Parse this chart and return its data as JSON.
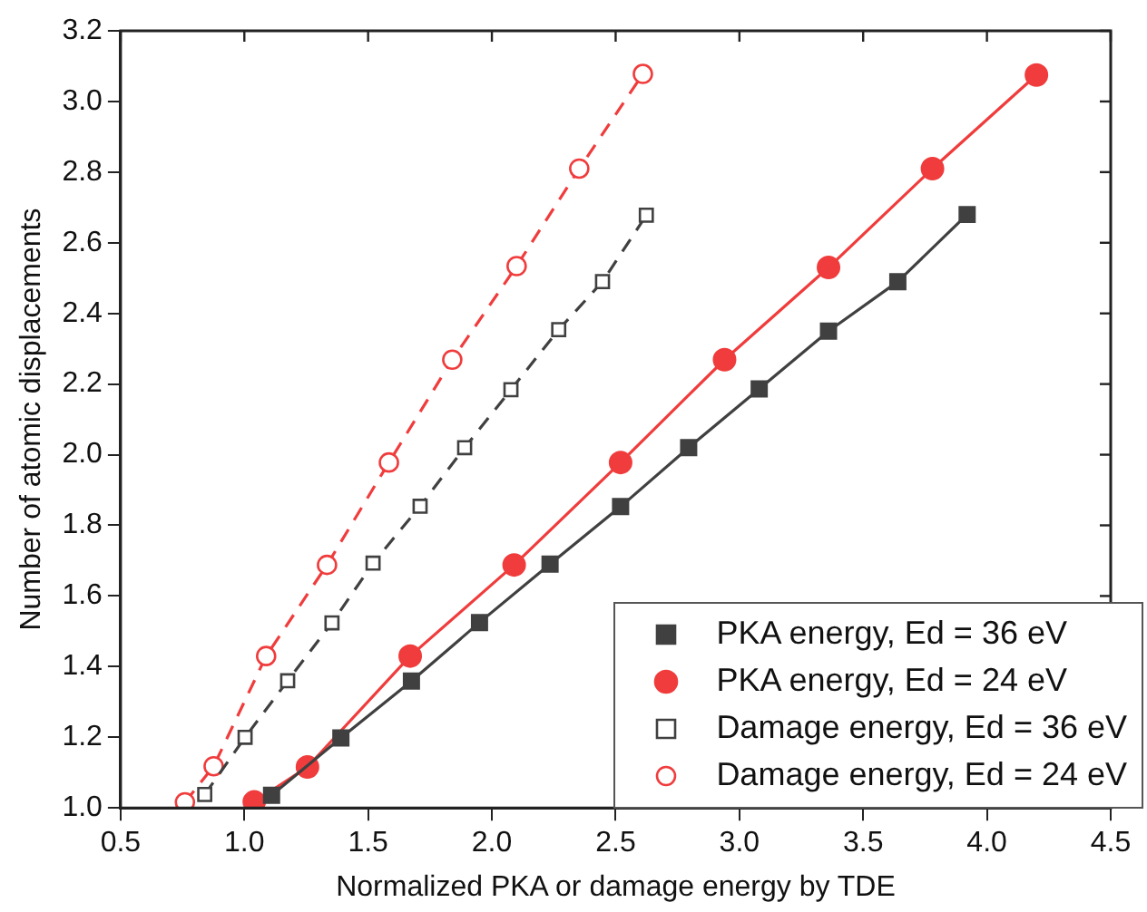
{
  "chart_data": {
    "type": "line",
    "xlabel": "Normalized PKA or damage energy by TDE",
    "ylabel": "Number of atomic displacements",
    "xlim": [
      0.5,
      4.5
    ],
    "xticks": [
      0.5,
      {
        "value": 1,
        "label": "1.0"
      },
      1.5,
      {
        "value": 2,
        "label": "2.0"
      },
      2.5,
      {
        "value": 3,
        "label": "3.0"
      },
      3.5,
      {
        "value": 4,
        "label": "4.0"
      },
      4.5
    ],
    "ylim": [
      1,
      3.2
    ],
    "yticks": [
      {
        "value": 1,
        "label": "1.0"
      },
      {
        "value": 1.2,
        "label": "1.2"
      },
      {
        "value": 1.4,
        "label": "1.4"
      },
      {
        "value": 1.6,
        "label": "1.6"
      },
      {
        "value": 1.8,
        "label": "1.8"
      },
      {
        "value": 2,
        "label": "2.0"
      },
      {
        "value": 2.2,
        "label": "2.2"
      },
      {
        "value": 2.4,
        "label": "2.4"
      },
      {
        "value": 2.6,
        "label": "2.6"
      },
      {
        "value": 2.8,
        "label": "2.8"
      },
      {
        "value": 3,
        "label": "3.0"
      },
      {
        "value": 3.2,
        "label": "3.2"
      }
    ],
    "grid": false,
    "legend": "bottom right",
    "series": [
      {
        "name": "PKA energy, Ed = 36 eV",
        "color": "#404040",
        "marker": "square",
        "line_style": "solid",
        "x": [
          1.11,
          1.39,
          1.675,
          1.95,
          2.235,
          2.52,
          2.795,
          3.08,
          3.36,
          3.64,
          3.92
        ],
        "values": [
          1.036,
          1.198,
          1.359,
          1.525,
          1.69,
          1.853,
          2.02,
          2.186,
          2.35,
          2.49,
          2.68
        ]
      },
      {
        "name": "PKA energy, Ed = 24 eV",
        "color": "#f03c3c",
        "marker": "circle",
        "line_style": "solid",
        "x": [
          1.04,
          1.255,
          1.67,
          2.09,
          2.52,
          2.94,
          3.36,
          3.78,
          4.2
        ],
        "values": [
          1.017,
          1.116,
          1.43,
          1.688,
          1.978,
          2.269,
          2.53,
          2.81,
          3.075
        ]
      },
      {
        "name": "Damage energy, Ed = 36 eV",
        "color": "#404040",
        "marker": "square",
        "line_style": "dashed",
        "x": [
          0.84,
          1.003,
          1.175,
          1.354,
          1.52,
          1.71,
          1.89,
          2.077,
          2.27,
          2.447,
          2.624
        ],
        "values": [
          1.038,
          1.2,
          1.36,
          1.524,
          1.693,
          1.854,
          2.02,
          2.184,
          2.354,
          2.49,
          2.678
        ]
      },
      {
        "name": "Damage energy, Ed = 24 eV",
        "color": "#f03c3c",
        "marker": "circle",
        "line_style": "dashed",
        "x": [
          0.76,
          0.876,
          1.088,
          1.334,
          1.584,
          1.84,
          2.1,
          2.353,
          2.61
        ],
        "values": [
          1.016,
          1.118,
          1.43,
          1.688,
          1.978,
          2.269,
          2.534,
          2.81,
          3.078
        ]
      }
    ]
  }
}
